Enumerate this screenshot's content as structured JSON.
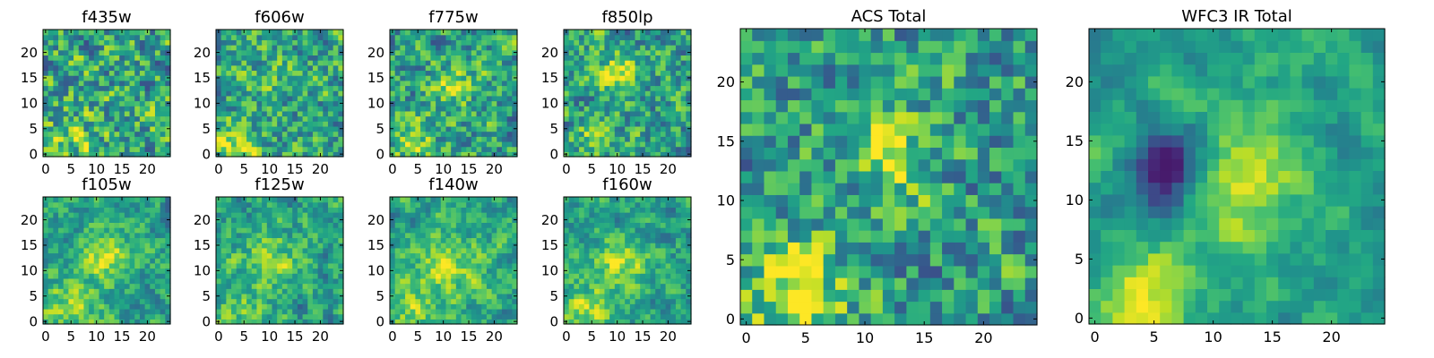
{
  "figure": {
    "colormap": "viridis",
    "background": "#ffffff"
  },
  "chart_data": [
    {
      "type": "heatmap",
      "title": "f435w",
      "grid": [
        25,
        25
      ],
      "xlim": [
        -0.5,
        24.5
      ],
      "ylim": [
        -0.5,
        24.5
      ],
      "xticks": [
        0,
        5,
        10,
        15,
        20
      ],
      "yticks": [
        0,
        5,
        10,
        15,
        20
      ],
      "grid_lines": false,
      "field": {
        "seed": 11,
        "base": 0.6,
        "noise": 0.55,
        "smooth": 0.35,
        "blobs": [
          [
            5,
            3,
            4,
            0.15
          ]
        ]
      }
    },
    {
      "type": "heatmap",
      "title": "f606w",
      "grid": [
        25,
        25
      ],
      "xlim": [
        -0.5,
        24.5
      ],
      "ylim": [
        -0.5,
        24.5
      ],
      "xticks": [
        0,
        5,
        10,
        15,
        20
      ],
      "yticks": [
        0,
        5,
        10,
        15,
        20
      ],
      "grid_lines": false,
      "field": {
        "seed": 23,
        "base": 0.58,
        "noise": 0.5,
        "smooth": 0.4,
        "blobs": [
          [
            3,
            2,
            3,
            0.35
          ],
          [
            10,
            16,
            3,
            0.12
          ]
        ]
      }
    },
    {
      "type": "heatmap",
      "title": "f775w",
      "grid": [
        25,
        25
      ],
      "xlim": [
        -0.5,
        24.5
      ],
      "ylim": [
        -0.5,
        24.5
      ],
      "xticks": [
        0,
        5,
        10,
        15,
        20
      ],
      "yticks": [
        0,
        5,
        10,
        15,
        20
      ],
      "grid_lines": false,
      "field": {
        "seed": 37,
        "base": 0.56,
        "noise": 0.5,
        "smooth": 0.4,
        "blobs": [
          [
            4,
            3,
            3,
            0.28
          ],
          [
            12,
            13,
            3,
            0.25
          ]
        ]
      }
    },
    {
      "type": "heatmap",
      "title": "f850lp",
      "grid": [
        25,
        25
      ],
      "xlim": [
        -0.5,
        24.5
      ],
      "ylim": [
        -0.5,
        24.5
      ],
      "xticks": [
        0,
        5,
        10,
        15,
        20
      ],
      "yticks": [
        0,
        5,
        10,
        15,
        20
      ],
      "grid_lines": false,
      "field": {
        "seed": 41,
        "base": 0.56,
        "noise": 0.5,
        "smooth": 0.4,
        "blobs": [
          [
            11,
            16,
            3,
            0.32
          ],
          [
            5,
            3,
            3,
            0.18
          ]
        ]
      }
    },
    {
      "type": "heatmap",
      "title": "f105w",
      "grid": [
        25,
        25
      ],
      "xlim": [
        -0.5,
        24.5
      ],
      "ylim": [
        -0.5,
        24.5
      ],
      "xticks": [
        0,
        5,
        10,
        15,
        20
      ],
      "yticks": [
        0,
        5,
        10,
        15,
        20
      ],
      "grid_lines": false,
      "field": {
        "seed": 53,
        "base": 0.56,
        "noise": 0.42,
        "smooth": 0.55,
        "blobs": [
          [
            12,
            13,
            4,
            0.3
          ],
          [
            4,
            3,
            4,
            0.28
          ]
        ]
      }
    },
    {
      "type": "heatmap",
      "title": "f125w",
      "grid": [
        25,
        25
      ],
      "xlim": [
        -0.5,
        24.5
      ],
      "ylim": [
        -0.5,
        24.5
      ],
      "xticks": [
        0,
        5,
        10,
        15,
        20
      ],
      "yticks": [
        0,
        5,
        10,
        15,
        20
      ],
      "grid_lines": false,
      "field": {
        "seed": 67,
        "base": 0.57,
        "noise": 0.45,
        "smooth": 0.55,
        "blobs": [
          [
            11,
            13,
            4,
            0.2
          ],
          [
            4,
            3,
            4,
            0.18
          ]
        ]
      }
    },
    {
      "type": "heatmap",
      "title": "f140w",
      "grid": [
        25,
        25
      ],
      "xlim": [
        -0.5,
        24.5
      ],
      "ylim": [
        -0.5,
        24.5
      ],
      "xticks": [
        0,
        5,
        10,
        15,
        20
      ],
      "yticks": [
        0,
        5,
        10,
        15,
        20
      ],
      "grid_lines": false,
      "field": {
        "seed": 79,
        "base": 0.58,
        "noise": 0.45,
        "smooth": 0.6,
        "blobs": [
          [
            11,
            11,
            4,
            0.32
          ],
          [
            5,
            3,
            4,
            0.25
          ]
        ]
      }
    },
    {
      "type": "heatmap",
      "title": "f160w",
      "grid": [
        25,
        25
      ],
      "xlim": [
        -0.5,
        24.5
      ],
      "ylim": [
        -0.5,
        24.5
      ],
      "xticks": [
        0,
        5,
        10,
        15,
        20
      ],
      "yticks": [
        0,
        5,
        10,
        15,
        20
      ],
      "grid_lines": false,
      "field": {
        "seed": 97,
        "base": 0.56,
        "noise": 0.45,
        "smooth": 0.6,
        "blobs": [
          [
            11,
            12,
            4,
            0.3
          ],
          [
            4,
            2,
            4,
            0.25
          ]
        ]
      }
    },
    {
      "type": "heatmap",
      "title": "ACS Total",
      "grid": [
        25,
        25
      ],
      "xlim": [
        -0.5,
        24.5
      ],
      "ylim": [
        -0.5,
        24.5
      ],
      "xticks": [
        0,
        5,
        10,
        15,
        20
      ],
      "yticks": [
        0,
        5,
        10,
        15,
        20
      ],
      "grid_lines": false,
      "field": {
        "seed": 131,
        "base": 0.55,
        "noise": 0.5,
        "smooth": 0.35,
        "blobs": [
          [
            4,
            2,
            3,
            0.4
          ],
          [
            12,
            15,
            2,
            0.35
          ],
          [
            12,
            10,
            2,
            0.2
          ]
        ]
      }
    },
    {
      "type": "heatmap",
      "title": "WFC3 IR Total",
      "grid": [
        25,
        25
      ],
      "xlim": [
        -0.5,
        24.5
      ],
      "ylim": [
        -0.5,
        24.5
      ],
      "xticks": [
        0,
        5,
        10,
        15,
        20
      ],
      "yticks": [
        0,
        5,
        10,
        15,
        20
      ],
      "grid_lines": false,
      "field": {
        "seed": 149,
        "base": 0.56,
        "noise": 0.35,
        "smooth": 0.7,
        "blobs": [
          [
            12,
            12,
            4,
            0.38
          ],
          [
            4,
            2,
            3,
            0.35
          ],
          [
            7,
            14,
            2,
            -0.45
          ],
          [
            6,
            11,
            2,
            -0.35
          ]
        ]
      }
    }
  ]
}
